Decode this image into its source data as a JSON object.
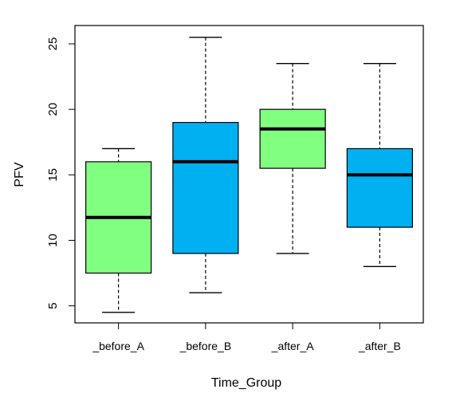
{
  "chart_data": {
    "type": "box",
    "xlabel": "Time_Group",
    "ylabel": "PFV",
    "categories": [
      "_before_A",
      "_before_B",
      "_after_A",
      "_after_B"
    ],
    "yticks": [
      5,
      10,
      15,
      20,
      25
    ],
    "ylim": [
      3.7,
      26.4
    ],
    "grid": false,
    "legend": "none",
    "colors": {
      "A": "#80ff80",
      "B": "#00b0f0",
      "stroke": "#000000"
    },
    "boxes": [
      {
        "category": "_before_A",
        "group": "A",
        "whisker_low": 4.5,
        "q1": 7.5,
        "median": 11.75,
        "q3": 16.0,
        "whisker_high": 17.0
      },
      {
        "category": "_before_B",
        "group": "B",
        "whisker_low": 6.0,
        "q1": 9.0,
        "median": 16.0,
        "q3": 19.0,
        "whisker_high": 25.5
      },
      {
        "category": "_after_A",
        "group": "A",
        "whisker_low": 9.0,
        "q1": 15.5,
        "median": 18.5,
        "q3": 20.0,
        "whisker_high": 23.5
      },
      {
        "category": "_after_B",
        "group": "B",
        "whisker_low": 8.0,
        "q1": 11.0,
        "median": 15.0,
        "q3": 17.0,
        "whisker_high": 23.5
      }
    ]
  }
}
